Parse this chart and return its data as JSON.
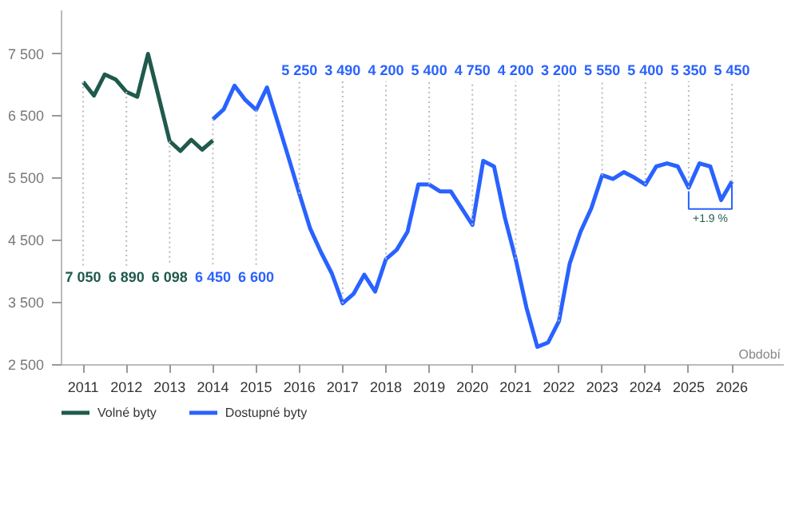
{
  "chart_data": {
    "type": "line",
    "xlabel": "Období",
    "xlim": [
      2010.5,
      2027.2
    ],
    "xticks": [
      {
        "value": 2011,
        "label": "2011"
      },
      {
        "value": 2012,
        "label": "2012"
      },
      {
        "value": 2013,
        "label": "2013"
      },
      {
        "value": 2014,
        "label": "2014"
      },
      {
        "value": 2015,
        "label": "2015"
      },
      {
        "value": 2016,
        "label": "2016"
      },
      {
        "value": 2017,
        "label": "2017"
      },
      {
        "value": 2018,
        "label": "2018"
      },
      {
        "value": 2019,
        "label": "2019"
      },
      {
        "value": 2020,
        "label": "2020"
      },
      {
        "value": 2021,
        "label": "2021"
      },
      {
        "value": 2022,
        "label": "2022"
      },
      {
        "value": 2023,
        "label": "2023"
      },
      {
        "value": 2024,
        "label": "2024"
      },
      {
        "value": 2025,
        "label": "2025"
      },
      {
        "value": 2026,
        "label": "2026"
      }
    ],
    "ylim": [
      2500,
      8200
    ],
    "yticks": [
      {
        "value": 2500,
        "label": "2 500"
      },
      {
        "value": 3500,
        "label": "3 500"
      },
      {
        "value": 4500,
        "label": "4 500"
      },
      {
        "value": 5500,
        "label": "5 500"
      },
      {
        "value": 6500,
        "label": "6 500"
      },
      {
        "value": 7500,
        "label": "7 500"
      }
    ],
    "grid": false,
    "legend": "bottom left",
    "marker": "none",
    "line_style": "solid",
    "annotations": [
      "+1.9 %"
    ],
    "series": [
      {
        "name": "Volné byty",
        "color": "#1f5a4c",
        "x": [
          2011,
          2011.25,
          2011.5,
          2011.75,
          2012,
          2012.25,
          2012.5,
          2012.75,
          2013,
          2013.25,
          2013.5,
          2013.75,
          2014
        ],
        "values": [
          7050,
          6830,
          7170,
          7090,
          6890,
          6810,
          7500,
          6800,
          6098,
          5940,
          6120,
          5960,
          6110
        ],
        "value_labels": [
          "7 050",
          null,
          null,
          null,
          "6 890",
          null,
          null,
          null,
          "6 098",
          null,
          null,
          null,
          null
        ]
      },
      {
        "name": "Dostupné byty",
        "color": "#2962ff",
        "x": [
          2014,
          2014.25,
          2014.5,
          2014.75,
          2015,
          2015.25,
          2015.5,
          2015.75,
          2016,
          2016.25,
          2016.5,
          2016.75,
          2017,
          2017.25,
          2017.5,
          2017.75,
          2018,
          2018.25,
          2018.5,
          2018.75,
          2019,
          2019.25,
          2019.5,
          2019.75,
          2020,
          2020.25,
          2020.5,
          2020.75,
          2021,
          2021.25,
          2021.5,
          2021.75,
          2022,
          2022.25,
          2022.5,
          2022.75,
          2023,
          2023.25,
          2023.5,
          2023.75,
          2024,
          2024.25,
          2024.5,
          2024.75,
          2025,
          2025.25,
          2025.5,
          2025.75,
          2026
        ],
        "values": [
          6450,
          6610,
          6990,
          6760,
          6600,
          6960,
          6400,
          5830,
          5250,
          4690,
          4310,
          3970,
          3490,
          3640,
          3950,
          3680,
          4200,
          4350,
          4640,
          5400,
          5400,
          5290,
          5290,
          5020,
          4750,
          5780,
          5690,
          4870,
          4200,
          3420,
          2790,
          2860,
          3200,
          4130,
          4640,
          5020,
          5550,
          5490,
          5600,
          5510,
          5400,
          5690,
          5740,
          5690,
          5350,
          5740,
          5690,
          5150,
          5450
        ],
        "value_labels": [
          "6 450",
          null,
          null,
          null,
          "6 600",
          null,
          null,
          null,
          "5 250",
          null,
          null,
          null,
          "3 490",
          null,
          null,
          null,
          "4 200",
          null,
          null,
          null,
          "5 400",
          null,
          null,
          null,
          "4 750",
          null,
          null,
          null,
          "4 200",
          null,
          null,
          null,
          "3 200",
          null,
          null,
          null,
          "5 550",
          null,
          null,
          null,
          "5 400",
          null,
          null,
          null,
          "5 350",
          null,
          null,
          null,
          "5 450"
        ]
      }
    ]
  }
}
